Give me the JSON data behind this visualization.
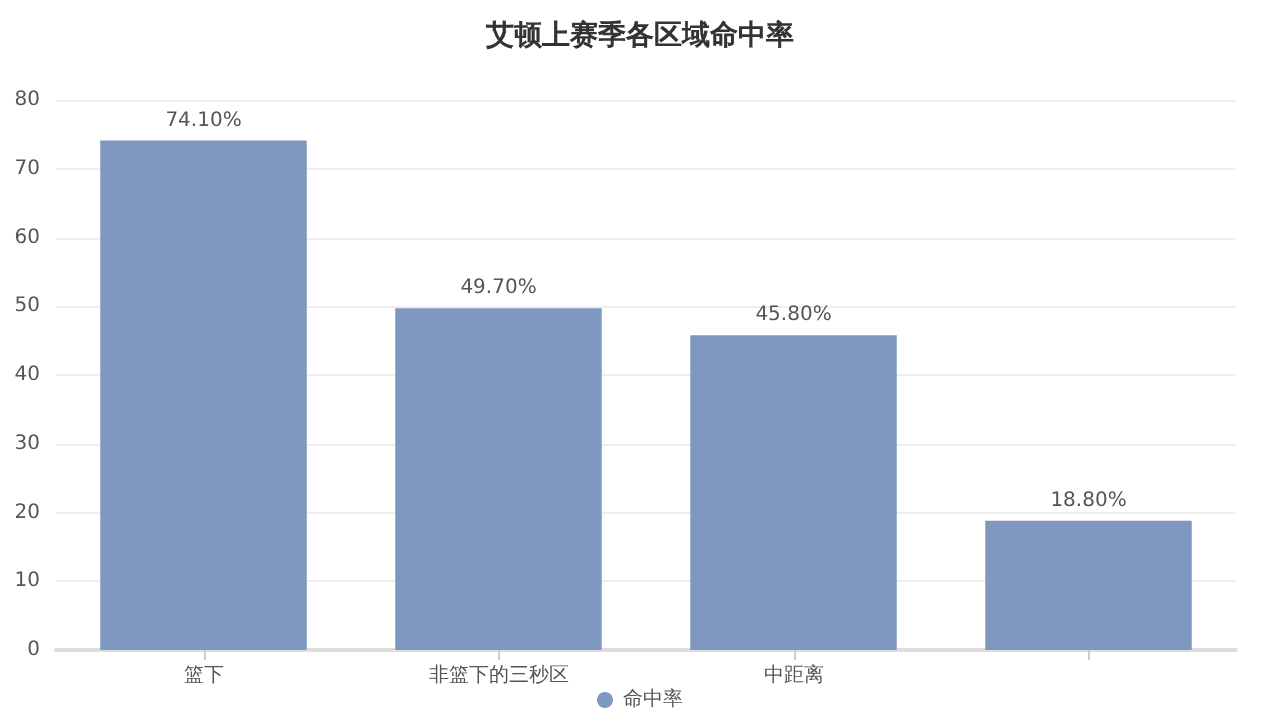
{
  "chart_data": {
    "type": "bar",
    "title": "艾顿上赛季各区域命中率",
    "categories": [
      "篮下",
      "非篮下的三秒区",
      "中距离",
      null
    ],
    "series": [
      {
        "name": "命中率",
        "color": "#7f98bf",
        "values": [
          74.1,
          49.7,
          45.8,
          18.8
        ],
        "value_labels": [
          "74.10%",
          "49.70%",
          "45.80%",
          "18.80%"
        ]
      }
    ],
    "ylim": [
      0,
      80
    ],
    "yticks": [
      0,
      10,
      20,
      30,
      40,
      50,
      60,
      70,
      80
    ],
    "grid": "y",
    "legend": "bottom"
  }
}
